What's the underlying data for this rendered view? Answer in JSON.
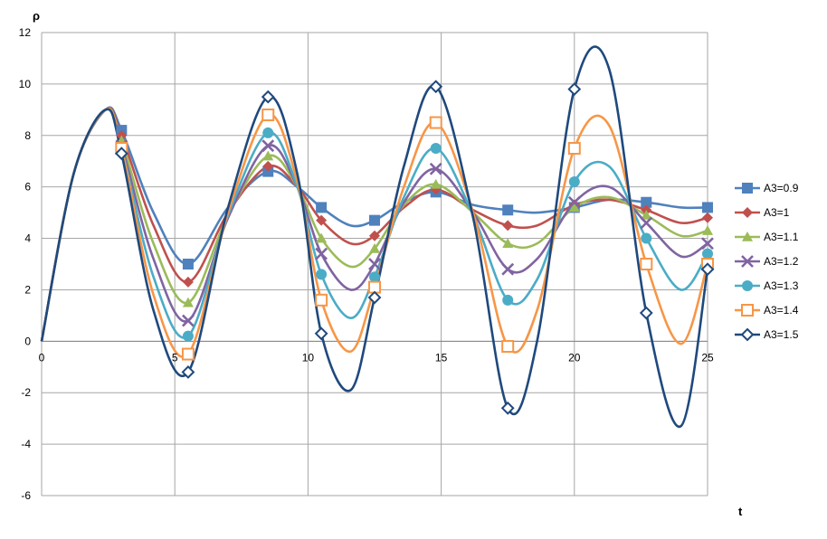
{
  "chart_data": {
    "type": "line",
    "title": "",
    "xlabel": "t",
    "ylabel": "ρ",
    "xlim": [
      0,
      25
    ],
    "ylim": [
      -6,
      12
    ],
    "xticks": [
      0,
      5,
      10,
      15,
      20,
      25
    ],
    "yticks": [
      -6,
      -4,
      -2,
      0,
      2,
      4,
      6,
      8,
      10,
      12
    ],
    "grid": true,
    "legend": "right",
    "series": [
      {
        "name": "A3=0.9",
        "color": "#4F81BD",
        "marker": "square-filled",
        "points": [
          [
            0,
            0
          ],
          [
            1.2,
            6.5
          ],
          [
            2.4,
            9.0
          ],
          [
            3,
            8.2
          ],
          [
            4.2,
            5.0
          ],
          [
            5.5,
            3.0
          ],
          [
            7,
            5.2
          ],
          [
            8.5,
            6.6
          ],
          [
            9.6,
            6.0
          ],
          [
            10.5,
            5.2
          ],
          [
            11.6,
            4.5
          ],
          [
            12.5,
            4.7
          ],
          [
            13.6,
            5.4
          ],
          [
            14.8,
            5.8
          ],
          [
            16.2,
            5.3
          ],
          [
            17.5,
            5.1
          ],
          [
            18.6,
            5.0
          ],
          [
            20,
            5.2
          ],
          [
            21.3,
            5.5
          ],
          [
            22.7,
            5.4
          ],
          [
            24,
            5.2
          ],
          [
            25,
            5.2
          ]
        ]
      },
      {
        "name": "A3=1",
        "color": "#C0504D",
        "marker": "diamond-filled",
        "points": [
          [
            0,
            0
          ],
          [
            1.2,
            6.5
          ],
          [
            2.4,
            9.0
          ],
          [
            3,
            8.0
          ],
          [
            4.2,
            4.5
          ],
          [
            5.5,
            2.3
          ],
          [
            7,
            5.0
          ],
          [
            8.5,
            6.8
          ],
          [
            9.6,
            6.0
          ],
          [
            10.5,
            4.7
          ],
          [
            11.6,
            3.8
          ],
          [
            12.5,
            4.1
          ],
          [
            13.6,
            5.2
          ],
          [
            14.8,
            5.9
          ],
          [
            16.2,
            5.1
          ],
          [
            17.5,
            4.5
          ],
          [
            18.6,
            4.5
          ],
          [
            20,
            5.3
          ],
          [
            21.3,
            5.5
          ],
          [
            22.7,
            5.1
          ],
          [
            24,
            4.6
          ],
          [
            25,
            4.8
          ]
        ]
      },
      {
        "name": "A3=1.1",
        "color": "#9BBB59",
        "marker": "triangle-filled",
        "points": [
          [
            0,
            0
          ],
          [
            1.2,
            6.5
          ],
          [
            2.4,
            9.0
          ],
          [
            3,
            7.8
          ],
          [
            4.2,
            3.8
          ],
          [
            5.5,
            1.5
          ],
          [
            7,
            4.9
          ],
          [
            8.5,
            7.2
          ],
          [
            9.6,
            6.0
          ],
          [
            10.5,
            4.0
          ],
          [
            11.6,
            2.9
          ],
          [
            12.5,
            3.6
          ],
          [
            13.6,
            5.3
          ],
          [
            14.8,
            6.1
          ],
          [
            16.2,
            5.0
          ],
          [
            17.5,
            3.8
          ],
          [
            18.6,
            3.8
          ],
          [
            20,
            5.2
          ],
          [
            21.3,
            5.6
          ],
          [
            22.7,
            4.9
          ],
          [
            24,
            4.1
          ],
          [
            25,
            4.3
          ]
        ]
      },
      {
        "name": "A3=1.2",
        "color": "#8064A2",
        "marker": "x",
        "points": [
          [
            0,
            0
          ],
          [
            1.2,
            6.5
          ],
          [
            2.4,
            9.0
          ],
          [
            3,
            7.6
          ],
          [
            4.2,
            3.2
          ],
          [
            5.5,
            0.8
          ],
          [
            7,
            4.8
          ],
          [
            8.5,
            7.6
          ],
          [
            9.6,
            6.0
          ],
          [
            10.5,
            3.4
          ],
          [
            11.6,
            2.0
          ],
          [
            12.5,
            3.0
          ],
          [
            13.6,
            5.4
          ],
          [
            14.8,
            6.7
          ],
          [
            16.2,
            5.0
          ],
          [
            17.5,
            2.8
          ],
          [
            18.6,
            3.2
          ],
          [
            20,
            5.4
          ],
          [
            21.3,
            6.0
          ],
          [
            22.7,
            4.6
          ],
          [
            24,
            3.3
          ],
          [
            25,
            3.8
          ]
        ]
      },
      {
        "name": "A3=1.3",
        "color": "#4BACC6",
        "marker": "circle-filled",
        "points": [
          [
            0,
            0
          ],
          [
            1.2,
            6.5
          ],
          [
            2.4,
            9.0
          ],
          [
            3,
            7.5
          ],
          [
            4.2,
            2.5
          ],
          [
            5.5,
            0.2
          ],
          [
            7,
            4.9
          ],
          [
            8.5,
            8.1
          ],
          [
            9.6,
            6.0
          ],
          [
            10.5,
            2.6
          ],
          [
            11.6,
            0.9
          ],
          [
            12.5,
            2.5
          ],
          [
            13.6,
            5.6
          ],
          [
            14.8,
            7.5
          ],
          [
            16.2,
            4.9
          ],
          [
            17.5,
            1.6
          ],
          [
            18.6,
            2.4
          ],
          [
            20,
            6.2
          ],
          [
            21.3,
            6.8
          ],
          [
            22.7,
            4.0
          ],
          [
            24,
            2.0
          ],
          [
            25,
            3.4
          ]
        ]
      },
      {
        "name": "A3=1.4",
        "color": "#F79646",
        "marker": "square-open",
        "points": [
          [
            0,
            0
          ],
          [
            1.2,
            6.5
          ],
          [
            2.4,
            9.0
          ],
          [
            3,
            7.5
          ],
          [
            4.2,
            1.8
          ],
          [
            5.5,
            -0.5
          ],
          [
            7,
            5.0
          ],
          [
            8.5,
            8.8
          ],
          [
            9.6,
            6.2
          ],
          [
            10.5,
            1.6
          ],
          [
            11.6,
            -0.4
          ],
          [
            12.5,
            2.1
          ],
          [
            13.6,
            6.0
          ],
          [
            14.8,
            8.5
          ],
          [
            16.2,
            5.0
          ],
          [
            17.5,
            -0.2
          ],
          [
            18.6,
            1.2
          ],
          [
            20,
            7.5
          ],
          [
            21.3,
            8.4
          ],
          [
            22.7,
            3.0
          ],
          [
            24,
            -0.1
          ],
          [
            25,
            3.0
          ]
        ]
      },
      {
        "name": "A3=1.5",
        "color": "#1F497D",
        "marker": "diamond-open",
        "points": [
          [
            0,
            0
          ],
          [
            1.2,
            6.5
          ],
          [
            2.4,
            9.0
          ],
          [
            3,
            7.3
          ],
          [
            4.2,
            1.2
          ],
          [
            5.5,
            -1.2
          ],
          [
            7,
            5.2
          ],
          [
            8.5,
            9.5
          ],
          [
            9.6,
            6.5
          ],
          [
            10.5,
            0.3
          ],
          [
            11.6,
            -1.9
          ],
          [
            12.5,
            1.7
          ],
          [
            13.6,
            6.8
          ],
          [
            14.8,
            9.9
          ],
          [
            16.2,
            4.8
          ],
          [
            17.5,
            -2.6
          ],
          [
            18.6,
            0.0
          ],
          [
            20,
            9.8
          ],
          [
            21.3,
            10.6
          ],
          [
            22.7,
            1.1
          ],
          [
            24,
            -3.3
          ],
          [
            25,
            2.8
          ]
        ]
      }
    ]
  }
}
